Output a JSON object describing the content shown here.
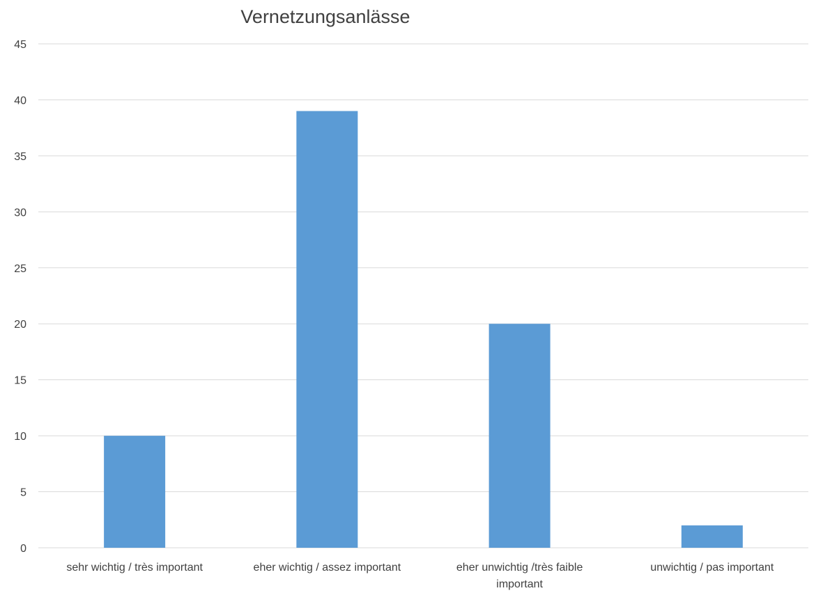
{
  "chart_data": {
    "type": "bar",
    "title": "Vernetzungsanlässe",
    "categories": [
      [
        "sehr wichtig / très important"
      ],
      [
        "eher wichtig / assez important"
      ],
      [
        "eher unwichtig /très faible",
        "important"
      ],
      [
        "unwichtig / pas important"
      ]
    ],
    "values": [
      10,
      39,
      20,
      2
    ],
    "ylim": [
      0,
      45
    ],
    "yticks": [
      "0",
      "5",
      "10",
      "15",
      "20",
      "25",
      "30",
      "35",
      "40",
      "45"
    ],
    "xlabel": "",
    "ylabel": "",
    "grid": true,
    "legend": "none",
    "bar_color": "#5B9BD5",
    "grid_color": "#D9D9D9"
  }
}
